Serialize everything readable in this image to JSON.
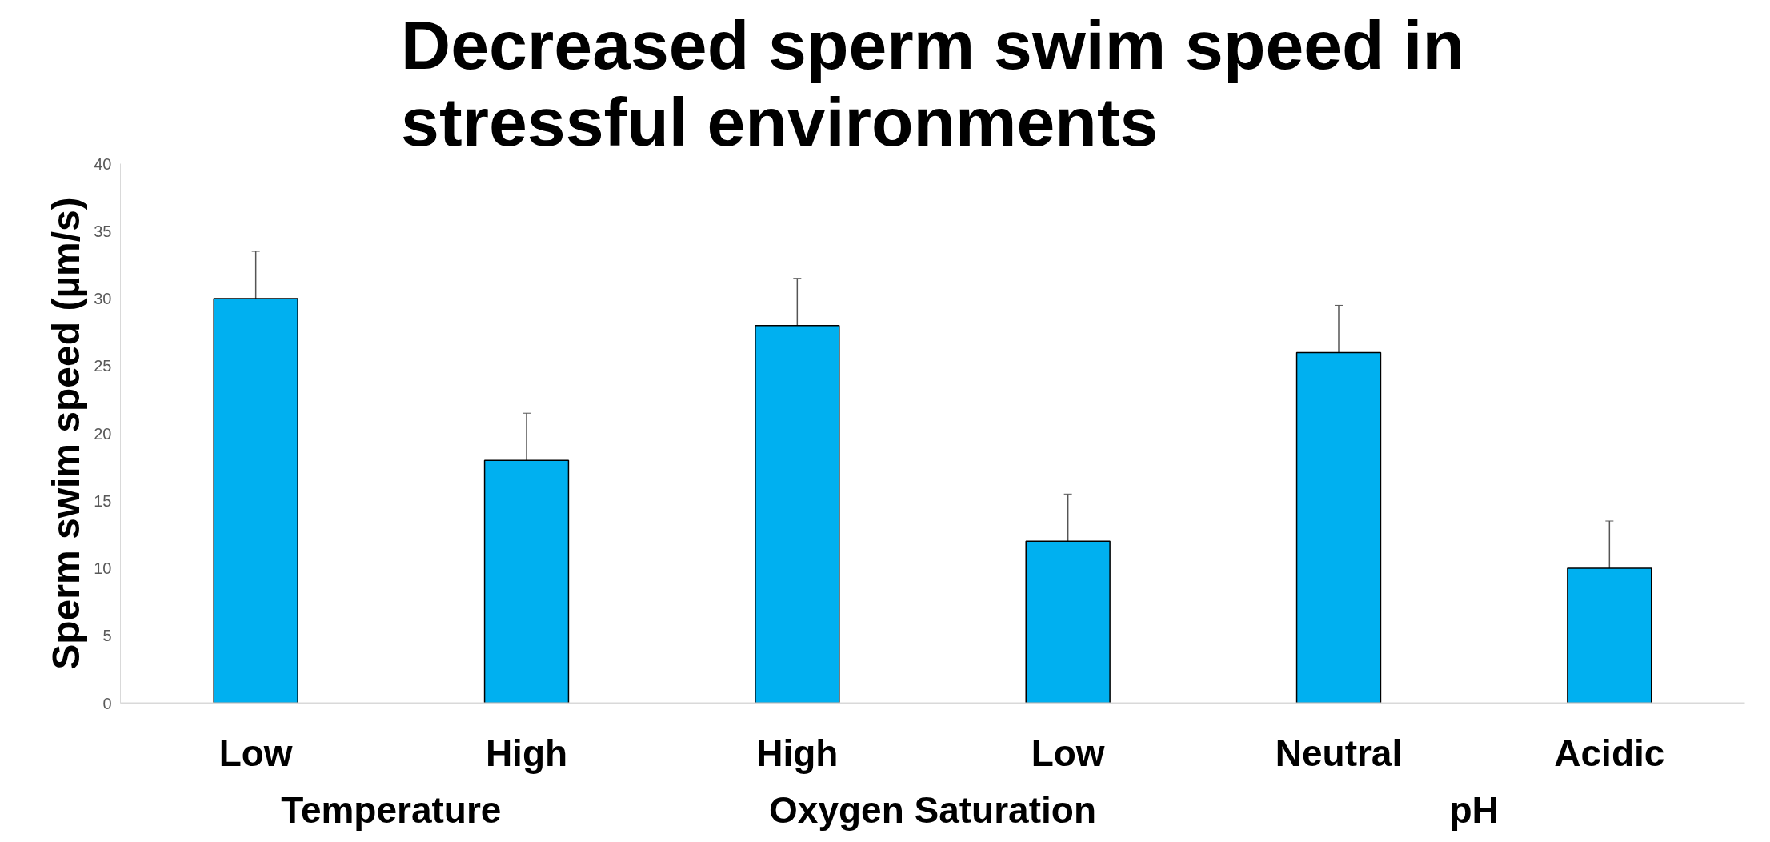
{
  "chart_data": {
    "type": "bar",
    "title": "Decreased sperm swim speed in stressful environments",
    "ylabel": "Sperm swim speed (µm/s)",
    "categories": [
      "Low",
      "High",
      "High",
      "Low",
      "Neutral",
      "Acidic"
    ],
    "values": [
      30,
      18,
      28,
      12,
      26,
      10
    ],
    "errors": [
      3.5,
      3.5,
      3.5,
      3.5,
      3.5,
      3.5
    ],
    "color": "#00b0f0",
    "ylim": [
      0,
      40
    ],
    "yticks": [
      0,
      5,
      10,
      15,
      20,
      25,
      30,
      35,
      40
    ],
    "annotations": [
      "Temperature",
      "Oxygen Saturation",
      "pH"
    ],
    "grid": false
  }
}
